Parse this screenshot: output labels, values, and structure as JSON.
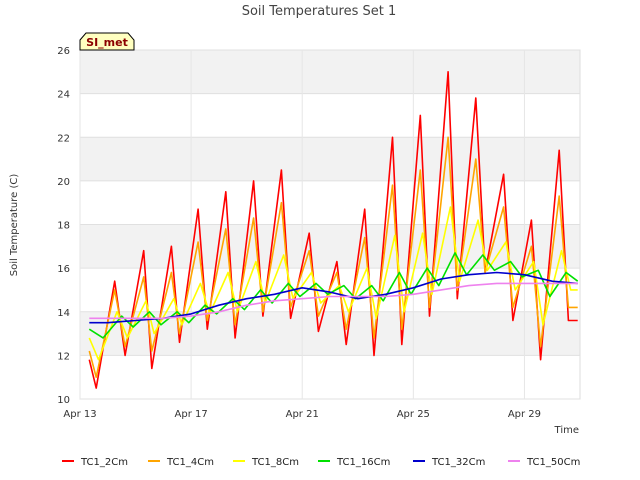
{
  "chart_data": {
    "type": "line",
    "title": "Soil Temperatures Set 1",
    "xlabel": "Time",
    "ylabel": "Soil Temperature (C)",
    "station_tag": "SI_met",
    "ylim": [
      10,
      26
    ],
    "xlim": [
      "2024-04-13",
      "2024-05-01"
    ],
    "x_ticks": [
      {
        "date": "2024-04-13",
        "label": "Apr 13"
      },
      {
        "date": "2024-04-17",
        "label": "Apr 17"
      },
      {
        "date": "2024-04-21",
        "label": "Apr 21"
      },
      {
        "date": "2024-04-25",
        "label": "Apr 25"
      },
      {
        "date": "2024-04-29",
        "label": "Apr 29"
      }
    ],
    "y_ticks": [
      10,
      12,
      14,
      16,
      18,
      20,
      22,
      24,
      26
    ],
    "grid": true,
    "legend_position": "bottom",
    "series": [
      {
        "name": "TC1_2Cm",
        "color": "#ff0000",
        "x": [
          "2024-04-13 08:00",
          "2024-04-13 14:00",
          "2024-04-14 06:00",
          "2024-04-14 15:00",
          "2024-04-15 07:00",
          "2024-04-15 14:00",
          "2024-04-16 07:00",
          "2024-04-16 14:00",
          "2024-04-17 06:00",
          "2024-04-17 14:00",
          "2024-04-18 06:00",
          "2024-04-18 14:00",
          "2024-04-19 06:00",
          "2024-04-19 14:00",
          "2024-04-20 06:00",
          "2024-04-20 14:00",
          "2024-04-21 06:00",
          "2024-04-21 14:00",
          "2024-04-22 06:00",
          "2024-04-22 14:00",
          "2024-04-23 06:00",
          "2024-04-23 14:00",
          "2024-04-24 06:00",
          "2024-04-24 14:00",
          "2024-04-25 06:00",
          "2024-04-25 14:00",
          "2024-04-26 06:00",
          "2024-04-26 14:00",
          "2024-04-27 06:00",
          "2024-04-27 14:00",
          "2024-04-28 06:00",
          "2024-04-28 14:00",
          "2024-04-29 06:00",
          "2024-04-29 14:00",
          "2024-04-30 06:00",
          "2024-04-30 14:00",
          "2024-04-30 22:00"
        ],
        "y": [
          11.8,
          10.5,
          15.4,
          12.0,
          16.8,
          11.4,
          17.0,
          12.6,
          18.7,
          13.2,
          19.5,
          12.8,
          20.0,
          13.8,
          20.5,
          13.7,
          17.6,
          13.1,
          16.3,
          12.5,
          18.7,
          12.0,
          22.0,
          12.5,
          23.0,
          13.8,
          25.0,
          14.6,
          23.8,
          15.8,
          20.3,
          13.6,
          18.2,
          11.8,
          21.4,
          13.6,
          13.6
        ]
      },
      {
        "name": "TC1_4Cm",
        "color": "#ffa500",
        "x": [
          "2024-04-13 08:00",
          "2024-04-13 14:00",
          "2024-04-14 06:00",
          "2024-04-14 15:00",
          "2024-04-15 07:00",
          "2024-04-15 14:00",
          "2024-04-16 07:00",
          "2024-04-16 14:00",
          "2024-04-17 06:00",
          "2024-04-17 14:00",
          "2024-04-18 06:00",
          "2024-04-18 14:00",
          "2024-04-19 06:00",
          "2024-04-19 14:00",
          "2024-04-20 06:00",
          "2024-04-20 14:00",
          "2024-04-21 06:00",
          "2024-04-21 14:00",
          "2024-04-22 06:00",
          "2024-04-22 14:00",
          "2024-04-23 06:00",
          "2024-04-23 14:00",
          "2024-04-24 06:00",
          "2024-04-24 14:00",
          "2024-04-25 06:00",
          "2024-04-25 14:00",
          "2024-04-26 06:00",
          "2024-04-26 14:00",
          "2024-04-27 06:00",
          "2024-04-27 14:00",
          "2024-04-28 06:00",
          "2024-04-28 14:00",
          "2024-04-29 06:00",
          "2024-04-29 14:00",
          "2024-04-30 06:00",
          "2024-04-30 14:00",
          "2024-04-30 22:00"
        ],
        "y": [
          12.2,
          11.0,
          15.0,
          12.4,
          15.6,
          12.2,
          15.8,
          13.0,
          17.2,
          13.6,
          17.8,
          13.4,
          18.3,
          14.0,
          19.0,
          14.2,
          16.8,
          13.8,
          15.8,
          13.2,
          17.4,
          12.8,
          19.8,
          13.2,
          20.5,
          14.2,
          22.0,
          15.0,
          21.0,
          15.8,
          18.8,
          14.2,
          17.0,
          12.4,
          19.3,
          14.2,
          14.2
        ]
      },
      {
        "name": "TC1_8Cm",
        "color": "#ffff00",
        "x": [
          "2024-04-13 08:00",
          "2024-04-13 16:00",
          "2024-04-14 08:00",
          "2024-04-14 17:00",
          "2024-04-15 09:00",
          "2024-04-15 16:00",
          "2024-04-16 09:00",
          "2024-04-16 16:00",
          "2024-04-17 08:00",
          "2024-04-17 16:00",
          "2024-04-18 08:00",
          "2024-04-18 16:00",
          "2024-04-19 08:00",
          "2024-04-19 16:00",
          "2024-04-20 08:00",
          "2024-04-20 16:00",
          "2024-04-21 08:00",
          "2024-04-21 16:00",
          "2024-04-22 08:00",
          "2024-04-22 16:00",
          "2024-04-23 08:00",
          "2024-04-23 16:00",
          "2024-04-24 08:00",
          "2024-04-24 16:00",
          "2024-04-25 08:00",
          "2024-04-25 16:00",
          "2024-04-26 08:00",
          "2024-04-26 16:00",
          "2024-04-27 08:00",
          "2024-04-27 16:00",
          "2024-04-28 08:00",
          "2024-04-28 16:00",
          "2024-04-29 08:00",
          "2024-04-29 16:00",
          "2024-04-30 08:00",
          "2024-04-30 16:00",
          "2024-04-30 22:00"
        ],
        "y": [
          12.8,
          11.8,
          14.0,
          12.8,
          14.5,
          13.0,
          14.6,
          13.4,
          15.3,
          13.9,
          15.8,
          14.0,
          16.3,
          14.4,
          16.6,
          14.6,
          15.8,
          14.4,
          15.2,
          14.0,
          16.0,
          13.7,
          17.5,
          14.0,
          17.6,
          14.8,
          18.8,
          15.4,
          18.2,
          15.9,
          17.2,
          15.0,
          16.3,
          13.4,
          16.8,
          15.0,
          15.0
        ]
      },
      {
        "name": "TC1_16Cm",
        "color": "#00e000",
        "x": [
          "2024-04-13 08:00",
          "2024-04-13 20:00",
          "2024-04-14 12:00",
          "2024-04-14 22:00",
          "2024-04-15 12:00",
          "2024-04-15 22:00",
          "2024-04-16 12:00",
          "2024-04-16 22:00",
          "2024-04-17 12:00",
          "2024-04-17 22:00",
          "2024-04-18 12:00",
          "2024-04-18 22:00",
          "2024-04-19 12:00",
          "2024-04-19 22:00",
          "2024-04-20 12:00",
          "2024-04-20 22:00",
          "2024-04-21 12:00",
          "2024-04-21 22:00",
          "2024-04-22 12:00",
          "2024-04-22 22:00",
          "2024-04-23 12:00",
          "2024-04-23 22:00",
          "2024-04-24 12:00",
          "2024-04-24 22:00",
          "2024-04-25 12:00",
          "2024-04-25 22:00",
          "2024-04-26 12:00",
          "2024-04-26 22:00",
          "2024-04-27 12:00",
          "2024-04-27 22:00",
          "2024-04-28 12:00",
          "2024-04-28 22:00",
          "2024-04-29 12:00",
          "2024-04-29 22:00",
          "2024-04-30 12:00",
          "2024-04-30 22:00"
        ],
        "y": [
          13.2,
          12.8,
          13.8,
          13.3,
          14.0,
          13.4,
          14.0,
          13.5,
          14.3,
          13.9,
          14.6,
          14.1,
          15.0,
          14.4,
          15.3,
          14.7,
          15.3,
          14.8,
          15.2,
          14.6,
          15.2,
          14.5,
          15.8,
          14.8,
          16.0,
          15.2,
          16.7,
          15.7,
          16.6,
          15.9,
          16.3,
          15.6,
          15.9,
          14.7,
          15.8,
          15.4
        ]
      },
      {
        "name": "TC1_32Cm",
        "color": "#0000cc",
        "x": [
          "2024-04-13 08:00",
          "2024-04-14 00:00",
          "2024-04-15 00:00",
          "2024-04-16 00:00",
          "2024-04-17 00:00",
          "2024-04-18 00:00",
          "2024-04-19 00:00",
          "2024-04-20 00:00",
          "2024-04-21 00:00",
          "2024-04-22 00:00",
          "2024-04-23 00:00",
          "2024-04-24 00:00",
          "2024-04-25 00:00",
          "2024-04-26 00:00",
          "2024-04-27 00:00",
          "2024-04-28 00:00",
          "2024-04-29 00:00",
          "2024-04-30 00:00",
          "2024-04-30 22:00"
        ],
        "y": [
          13.5,
          13.5,
          13.6,
          13.7,
          13.9,
          14.3,
          14.6,
          14.8,
          15.1,
          14.9,
          14.6,
          14.8,
          15.1,
          15.5,
          15.7,
          15.8,
          15.7,
          15.4,
          15.3
        ]
      },
      {
        "name": "TC1_50Cm",
        "color": "#ee82ee",
        "x": [
          "2024-04-13 08:00",
          "2024-04-14 00:00",
          "2024-04-15 00:00",
          "2024-04-16 00:00",
          "2024-04-17 00:00",
          "2024-04-18 00:00",
          "2024-04-19 00:00",
          "2024-04-20 00:00",
          "2024-04-21 00:00",
          "2024-04-22 00:00",
          "2024-04-23 00:00",
          "2024-04-24 00:00",
          "2024-04-25 00:00",
          "2024-04-26 00:00",
          "2024-04-27 00:00",
          "2024-04-28 00:00",
          "2024-04-29 00:00",
          "2024-04-30 00:00",
          "2024-04-30 22:00"
        ],
        "y": [
          13.7,
          13.7,
          13.7,
          13.7,
          13.8,
          14.0,
          14.3,
          14.5,
          14.6,
          14.7,
          14.7,
          14.7,
          14.8,
          15.0,
          15.2,
          15.3,
          15.3,
          15.3,
          15.3
        ]
      }
    ]
  }
}
